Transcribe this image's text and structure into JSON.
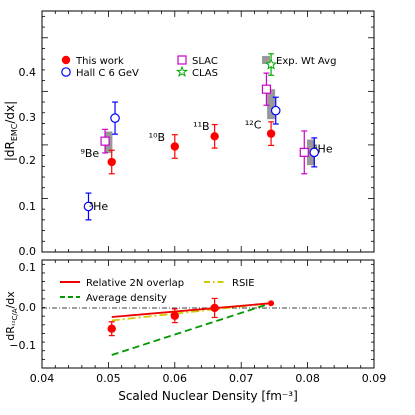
{
  "chart_data": [
    {
      "type": "scatter",
      "ylabel": "|dR_EMC/dx|",
      "ylim": [
        0,
        0.45
      ],
      "yticks": [
        "0.0",
        "0.1",
        "0.2",
        "0.3",
        "0.4"
      ],
      "xlim": [
        0.04,
        0.09
      ],
      "legend_placement": "top",
      "series": [
        {
          "name": "This work",
          "marker": "filled-circle",
          "color": "#ff0000",
          "points": [
            {
              "x": 0.0505,
              "y": 0.168,
              "err": 0.022
            },
            {
              "x": 0.06,
              "y": 0.197,
              "err": 0.022
            },
            {
              "x": 0.066,
              "y": 0.216,
              "err": 0.022
            },
            {
              "x": 0.0745,
              "y": 0.221,
              "err": 0.022
            }
          ]
        },
        {
          "name": "Hall C 6 GeV",
          "marker": "open-circle",
          "color": "#0000ff",
          "points": [
            {
              "x": 0.047,
              "y": 0.085,
              "err": 0.025
            },
            {
              "x": 0.051,
              "y": 0.25,
              "err": 0.03
            },
            {
              "x": 0.0752,
              "y": 0.264,
              "err": 0.025
            },
            {
              "x": 0.081,
              "y": 0.186,
              "err": 0.027
            }
          ]
        },
        {
          "name": "SLAC",
          "marker": "open-square",
          "color": "#cc00cc",
          "points": [
            {
              "x": 0.0495,
              "y": 0.207,
              "err": 0.022
            },
            {
              "x": 0.0738,
              "y": 0.304,
              "err": 0.03
            },
            {
              "x": 0.0795,
              "y": 0.186,
              "err": 0.04
            }
          ]
        },
        {
          "name": "CLAS",
          "marker": "open-star",
          "color": "#00aa00",
          "points": [
            {
              "x": 0.0745,
              "y": 0.35,
              "err": 0.02
            }
          ]
        },
        {
          "name": "Exp. Wt Avg",
          "marker": "gray-band",
          "color": "#999999",
          "points": [
            {
              "x": 0.05,
              "y": 0.205,
              "err": 0.02
            },
            {
              "x": 0.0745,
              "y": 0.276,
              "err": 0.028
            },
            {
              "x": 0.0805,
              "y": 0.186,
              "err": 0.024
            }
          ]
        }
      ],
      "annotations": [
        {
          "text": "⁹Be",
          "x": 0.0472,
          "y": 0.183
        },
        {
          "text": "¹⁰B",
          "x": 0.0573,
          "y": 0.213
        },
        {
          "text": "¹¹B",
          "x": 0.064,
          "y": 0.233
        },
        {
          "text": "¹²C",
          "x": 0.0718,
          "y": 0.236
        },
        {
          "text": "⁴He",
          "x": 0.0823,
          "y": 0.191
        },
        {
          "text": "³He",
          "x": 0.0485,
          "y": 0.084
        }
      ]
    },
    {
      "type": "line",
      "xlabel": "Scaled Nuclear Density [fm⁻³]",
      "ylabel": "dR_12C/A/dx",
      "ylim": [
        -0.15,
        0.1
      ],
      "yticks": [
        "0.1",
        "0.0",
        "−0.1"
      ],
      "xlim": [
        0.04,
        0.09
      ],
      "xticks": [
        "0.04",
        "0.05",
        "0.06",
        "0.07",
        "0.08",
        "0.09"
      ],
      "reference_line": 0,
      "legend_placement": "top",
      "series": [
        {
          "name": "Relative 2N overlap",
          "style": "solid",
          "color": "#ee0000",
          "x": [
            0.0505,
            0.0745
          ],
          "y": [
            -0.032,
            0.0
          ]
        },
        {
          "name": "RSIE",
          "style": "dashdot",
          "color": "#cccc00",
          "x": [
            0.0505,
            0.0745
          ],
          "y": [
            -0.04,
            0.0
          ]
        },
        {
          "name": "Average density",
          "style": "dashed",
          "color": "#009900",
          "x": [
            0.0505,
            0.0745
          ],
          "y": [
            -0.12,
            0.0
          ]
        }
      ],
      "points": [
        {
          "x": 0.0505,
          "y": -0.059,
          "err": 0.016
        },
        {
          "x": 0.06,
          "y": -0.029,
          "err": 0.016
        },
        {
          "x": 0.066,
          "y": -0.011,
          "err": 0.022
        },
        {
          "x": 0.0745,
          "y": 0.0,
          "err": 0.0
        }
      ],
      "point_color": "#ff0000"
    }
  ]
}
